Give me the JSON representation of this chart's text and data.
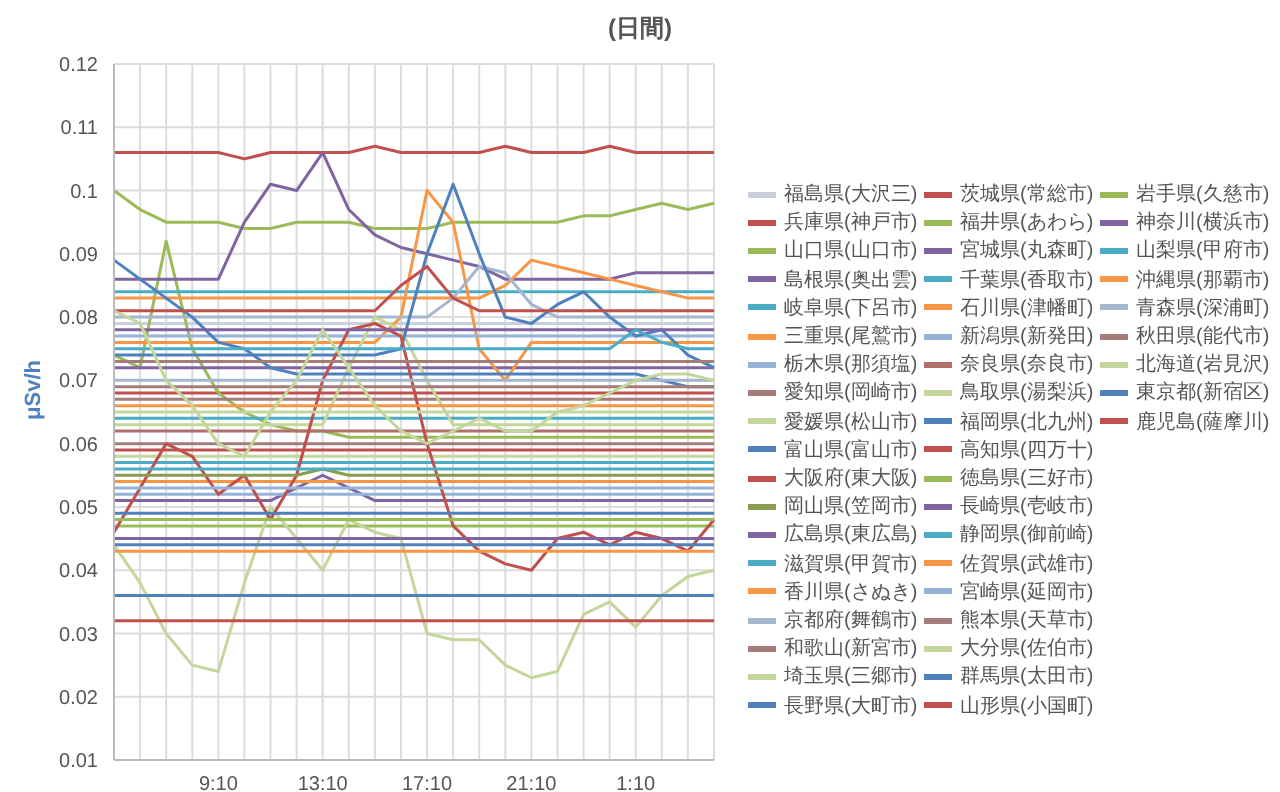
{
  "chart_data": {
    "type": "line",
    "title": "(日間)",
    "ylabel": "μSv/h",
    "categories": [
      null,
      null,
      null,
      null,
      "9:10",
      null,
      null,
      null,
      "13:10",
      null,
      null,
      null,
      "17:10",
      null,
      null,
      null,
      "21:10",
      null,
      null,
      null,
      "1:10",
      null,
      null,
      null
    ],
    "ylim": [
      0.01,
      0.12
    ],
    "yticks": [
      0.01,
      0.02,
      0.03,
      0.04,
      0.05,
      0.06,
      0.07,
      0.08,
      0.09,
      0.1,
      0.11,
      0.12
    ],
    "grid": true,
    "legend": "right",
    "marker": "none",
    "line_style": "solid",
    "series": [
      {
        "name": "福島県(大沢三)",
        "color": "#c9cfdc",
        "values": [
          0.079,
          0.079,
          0.079,
          0.079,
          0.079,
          0.079,
          0.079,
          0.079,
          0.079,
          0.079,
          0.079,
          0.079,
          0.079,
          0.079,
          0.079,
          0.079,
          0.079,
          0.079,
          0.079,
          0.079,
          0.079,
          0.079,
          0.079,
          0.079
        ]
      },
      {
        "name": "茨城県(常総市)",
        "color": "#c0504d",
        "values": [
          0.106,
          0.106,
          0.106,
          0.106,
          0.106,
          0.105,
          0.106,
          0.106,
          0.106,
          0.106,
          0.107,
          0.106,
          0.106,
          0.106,
          0.106,
          0.107,
          0.106,
          0.106,
          0.106,
          0.107,
          0.106,
          0.106,
          0.106,
          0.106
        ]
      },
      {
        "name": "岩手県(久慈市)",
        "color": "#9bbb59",
        "values": [
          0.1,
          0.097,
          0.095,
          0.095,
          0.095,
          0.094,
          0.094,
          0.095,
          0.095,
          0.095,
          0.094,
          0.094,
          0.094,
          0.095,
          0.095,
          0.095,
          0.095,
          0.095,
          0.096,
          0.096,
          0.097,
          0.098,
          0.097,
          0.098
        ]
      },
      {
        "name": "兵庫県(神戸市)",
        "color": "#c0504d",
        "values": [
          0.068,
          0.068,
          0.068,
          0.068,
          0.068,
          0.068,
          0.068,
          0.068,
          0.068,
          0.068,
          0.068,
          0.068,
          0.068,
          0.068,
          0.068,
          0.068,
          0.068,
          0.068,
          0.068,
          0.068,
          0.068,
          0.068,
          0.068,
          0.068
        ]
      },
      {
        "name": "福井県(あわら)",
        "color": "#9bbb59",
        "values": [
          0.074,
          0.072,
          0.092,
          0.075,
          0.068,
          0.065,
          0.063,
          0.062,
          0.062,
          0.061,
          0.061,
          0.061,
          0.061,
          0.061,
          0.061,
          0.061,
          0.061,
          0.061,
          0.061,
          0.061,
          0.061,
          0.061,
          0.061,
          0.061
        ]
      },
      {
        "name": "神奈川(横浜市)",
        "color": "#8064a2",
        "values": [
          0.086,
          0.086,
          0.086,
          0.086,
          0.086,
          0.095,
          0.101,
          0.1,
          0.106,
          0.097,
          0.093,
          0.091,
          0.09,
          0.089,
          0.088,
          0.086,
          0.086,
          0.086,
          0.086,
          0.086,
          0.087,
          0.087,
          0.087,
          0.087
        ]
      },
      {
        "name": "山口県(山口市)",
        "color": "#9bbb59",
        "values": [
          0.047,
          0.047,
          0.047,
          0.047,
          0.047,
          0.047,
          0.047,
          0.047,
          0.047,
          0.047,
          0.047,
          0.047,
          0.047,
          0.047,
          0.047,
          0.047,
          0.047,
          0.047,
          0.047,
          0.047,
          0.047,
          0.047,
          0.047,
          0.047
        ]
      },
      {
        "name": "宮城県(丸森町)",
        "color": "#8064a2",
        "values": [
          0.072,
          0.072,
          0.072,
          0.072,
          0.072,
          0.072,
          0.072,
          0.072,
          0.072,
          0.072,
          0.072,
          0.072,
          0.072,
          0.072,
          0.072,
          0.072,
          0.072,
          0.072,
          0.072,
          0.072,
          0.072,
          0.072,
          0.072,
          0.072
        ]
      },
      {
        "name": "山梨県(甲府市)",
        "color": "#4bacc6",
        "values": [
          0.084,
          0.084,
          0.084,
          0.084,
          0.084,
          0.084,
          0.084,
          0.084,
          0.084,
          0.084,
          0.084,
          0.084,
          0.084,
          0.084,
          0.084,
          0.084,
          0.084,
          0.084,
          0.084,
          0.084,
          0.084,
          0.084,
          0.084,
          0.084
        ]
      },
      {
        "name": "島根県(奥出雲)",
        "color": "#8064a2",
        "values": [
          0.051,
          0.051,
          0.051,
          0.051,
          0.051,
          0.051,
          0.051,
          0.053,
          0.055,
          0.053,
          0.051,
          0.051,
          0.051,
          0.051,
          0.051,
          0.051,
          0.051,
          0.051,
          0.051,
          0.051,
          0.051,
          0.051,
          0.051,
          0.051
        ]
      },
      {
        "name": "千葉県(香取市)",
        "color": "#4bacc6",
        "values": [
          0.064,
          0.064,
          0.064,
          0.064,
          0.064,
          0.064,
          0.064,
          0.064,
          0.064,
          0.064,
          0.064,
          0.064,
          0.064,
          0.064,
          0.064,
          0.064,
          0.064,
          0.064,
          0.064,
          0.064,
          0.064,
          0.064,
          0.064,
          0.064
        ]
      },
      {
        "name": "沖縄県(那覇市)",
        "color": "#f79646",
        "values": [
          0.083,
          0.083,
          0.083,
          0.083,
          0.083,
          0.083,
          0.083,
          0.083,
          0.083,
          0.083,
          0.083,
          0.083,
          0.083,
          0.083,
          0.083,
          0.085,
          0.089,
          0.088,
          0.087,
          0.086,
          0.085,
          0.084,
          0.083,
          0.083
        ]
      },
      {
        "name": "岐阜県(下呂市)",
        "color": "#4bacc6",
        "values": [
          0.057,
          0.057,
          0.057,
          0.057,
          0.057,
          0.057,
          0.057,
          0.057,
          0.057,
          0.057,
          0.057,
          0.057,
          0.057,
          0.057,
          0.057,
          0.057,
          0.057,
          0.057,
          0.057,
          0.057,
          0.057,
          0.057,
          0.057,
          0.057
        ]
      },
      {
        "name": "石川県(津幡町)",
        "color": "#f79646",
        "values": [
          0.076,
          0.076,
          0.076,
          0.076,
          0.076,
          0.076,
          0.076,
          0.076,
          0.076,
          0.076,
          0.076,
          0.08,
          0.1,
          0.095,
          0.075,
          0.07,
          0.076,
          0.076,
          0.076,
          0.076,
          0.076,
          0.076,
          0.076,
          0.076
        ]
      },
      {
        "name": "青森県(深浦町)",
        "color": "#a5b6cf",
        "values": [
          0.08,
          0.08,
          0.08,
          0.08,
          0.08,
          0.08,
          0.08,
          0.08,
          0.08,
          0.08,
          0.08,
          0.08,
          0.08,
          0.083,
          0.088,
          0.087,
          0.082,
          0.08,
          0.08,
          0.08,
          0.08,
          0.08,
          0.08,
          0.08
        ]
      },
      {
        "name": "三重県(尾鷲市)",
        "color": "#f79646",
        "values": [
          0.054,
          0.054,
          0.054,
          0.054,
          0.054,
          0.054,
          0.054,
          0.054,
          0.054,
          0.054,
          0.054,
          0.054,
          0.054,
          0.054,
          0.054,
          0.054,
          0.054,
          0.054,
          0.054,
          0.054,
          0.054,
          0.054,
          0.054,
          0.054
        ]
      },
      {
        "name": "新潟県(新発田)",
        "color": "#95b3d7",
        "values": [
          0.052,
          0.052,
          0.052,
          0.052,
          0.052,
          0.052,
          0.052,
          0.052,
          0.052,
          0.052,
          0.052,
          0.052,
          0.052,
          0.052,
          0.052,
          0.052,
          0.052,
          0.052,
          0.052,
          0.052,
          0.052,
          0.052,
          0.052,
          0.052
        ]
      },
      {
        "name": "秋田県(能代市)",
        "color": "#a47c7a",
        "values": [
          0.067,
          0.067,
          0.067,
          0.067,
          0.067,
          0.067,
          0.067,
          0.067,
          0.067,
          0.067,
          0.067,
          0.067,
          0.067,
          0.067,
          0.067,
          0.067,
          0.067,
          0.067,
          0.067,
          0.067,
          0.067,
          0.067,
          0.067,
          0.067
        ]
      },
      {
        "name": "栃木県(那須塩)",
        "color": "#95b3d7",
        "values": [
          0.077,
          0.077,
          0.077,
          0.077,
          0.077,
          0.077,
          0.077,
          0.077,
          0.077,
          0.077,
          0.077,
          0.077,
          0.077,
          0.077,
          0.077,
          0.077,
          0.077,
          0.077,
          0.077,
          0.077,
          0.077,
          0.077,
          0.077,
          0.077
        ]
      },
      {
        "name": "奈良県(奈良市)",
        "color": "#b0706c",
        "values": [
          0.062,
          0.062,
          0.062,
          0.062,
          0.062,
          0.062,
          0.062,
          0.062,
          0.062,
          0.062,
          0.062,
          0.062,
          0.062,
          0.062,
          0.062,
          0.062,
          0.062,
          0.062,
          0.062,
          0.062,
          0.062,
          0.062,
          0.062,
          0.062
        ]
      },
      {
        "name": "北海道(岩見沢)",
        "color": "#c3d69b",
        "values": [
          0.044,
          0.038,
          0.03,
          0.025,
          0.024,
          0.038,
          0.05,
          0.045,
          0.04,
          0.048,
          0.046,
          0.045,
          0.03,
          0.029,
          0.029,
          0.025,
          0.023,
          0.024,
          0.033,
          0.035,
          0.031,
          0.036,
          0.039,
          0.04
        ]
      },
      {
        "name": "愛知県(岡崎市)",
        "color": "#a47c7a",
        "values": [
          0.06,
          0.06,
          0.06,
          0.06,
          0.06,
          0.06,
          0.06,
          0.06,
          0.06,
          0.06,
          0.06,
          0.06,
          0.06,
          0.06,
          0.06,
          0.06,
          0.06,
          0.06,
          0.06,
          0.06,
          0.06,
          0.06,
          0.06,
          0.06
        ]
      },
      {
        "name": "鳥取県(湯梨浜)",
        "color": "#c3d69b",
        "values": [
          0.063,
          0.063,
          0.063,
          0.063,
          0.063,
          0.063,
          0.063,
          0.063,
          0.063,
          0.072,
          0.08,
          0.078,
          0.07,
          0.063,
          0.063,
          0.063,
          0.063,
          0.063,
          0.063,
          0.063,
          0.063,
          0.063,
          0.063,
          0.063
        ]
      },
      {
        "name": "東京都(新宿区)",
        "color": "#4f81bd",
        "values": [
          0.074,
          0.074,
          0.074,
          0.074,
          0.074,
          0.074,
          0.074,
          0.074,
          0.074,
          0.074,
          0.074,
          0.075,
          0.09,
          0.101,
          0.09,
          0.08,
          0.079,
          0.082,
          0.084,
          0.08,
          0.077,
          0.078,
          0.074,
          0.072
        ]
      },
      {
        "name": "愛媛県(松山市)",
        "color": "#c3d69b",
        "values": [
          0.058,
          0.058,
          0.058,
          0.058,
          0.058,
          0.058,
          0.058,
          0.058,
          0.058,
          0.058,
          0.058,
          0.058,
          0.058,
          0.058,
          0.058,
          0.058,
          0.058,
          0.058,
          0.058,
          0.058,
          0.058,
          0.058,
          0.058,
          0.058
        ]
      },
      {
        "name": "福岡県(北九州)",
        "color": "#4f81bd",
        "values": [
          0.089,
          0.086,
          0.083,
          0.08,
          0.076,
          0.075,
          0.072,
          0.071,
          0.071,
          0.071,
          0.071,
          0.071,
          0.071,
          0.071,
          0.071,
          0.071,
          0.071,
          0.071,
          0.071,
          0.071,
          0.071,
          0.07,
          0.069,
          0.069
        ]
      },
      {
        "name": "鹿児島(薩摩川)",
        "color": "#c0504d",
        "values": [
          0.046,
          0.053,
          0.06,
          0.058,
          0.052,
          0.055,
          0.048,
          0.055,
          0.07,
          0.078,
          0.079,
          0.077,
          0.06,
          0.047,
          0.043,
          0.041,
          0.04,
          0.045,
          0.046,
          0.044,
          0.046,
          0.045,
          0.043,
          0.048
        ]
      },
      {
        "name": "富山県(富山市)",
        "color": "#4f81bd",
        "values": [
          0.049,
          0.049,
          0.049,
          0.049,
          0.049,
          0.049,
          0.049,
          0.049,
          0.049,
          0.049,
          0.049,
          0.049,
          0.049,
          0.049,
          0.049,
          0.049,
          0.049,
          0.049,
          0.049,
          0.049,
          0.049,
          0.049,
          0.049,
          0.049
        ]
      },
      {
        "name": "高知県(四万十)",
        "color": "#c0504d",
        "values": [
          0.059,
          0.059,
          0.059,
          0.059,
          0.059,
          0.059,
          0.059,
          0.059,
          0.059,
          0.059,
          0.059,
          0.059,
          0.059,
          0.059,
          0.059,
          0.059,
          0.059,
          0.059,
          0.059,
          0.059,
          0.059,
          0.059,
          0.059,
          0.059
        ]
      },
      {
        "name": "大阪府(東大阪)",
        "color": "#c0504d",
        "values": [
          0.081,
          0.081,
          0.081,
          0.081,
          0.081,
          0.081,
          0.081,
          0.081,
          0.081,
          0.081,
          0.081,
          0.085,
          0.088,
          0.083,
          0.081,
          0.081,
          0.081,
          0.081,
          0.081,
          0.081,
          0.081,
          0.081,
          0.081,
          0.081
        ]
      },
      {
        "name": "徳島県(三好市)",
        "color": "#9bbb59",
        "values": [
          0.048,
          0.048,
          0.048,
          0.048,
          0.048,
          0.048,
          0.048,
          0.048,
          0.048,
          0.048,
          0.048,
          0.048,
          0.048,
          0.048,
          0.048,
          0.048,
          0.048,
          0.048,
          0.048,
          0.048,
          0.048,
          0.048,
          0.048,
          0.048
        ]
      },
      {
        "name": "岡山県(笠岡市)",
        "color": "#8a9a50",
        "values": [
          0.055,
          0.055,
          0.055,
          0.055,
          0.055,
          0.055,
          0.055,
          0.055,
          0.056,
          0.055,
          0.055,
          0.055,
          0.055,
          0.055,
          0.055,
          0.055,
          0.055,
          0.055,
          0.055,
          0.055,
          0.055,
          0.055,
          0.055,
          0.055
        ]
      },
      {
        "name": "長崎県(壱岐市)",
        "color": "#8064a2",
        "values": [
          0.045,
          0.045,
          0.045,
          0.045,
          0.045,
          0.045,
          0.045,
          0.045,
          0.045,
          0.045,
          0.045,
          0.045,
          0.045,
          0.045,
          0.045,
          0.045,
          0.045,
          0.045,
          0.045,
          0.045,
          0.045,
          0.045,
          0.045,
          0.045
        ]
      },
      {
        "name": "広島県(東広島)",
        "color": "#8064a2",
        "values": [
          0.078,
          0.078,
          0.078,
          0.078,
          0.078,
          0.078,
          0.078,
          0.078,
          0.078,
          0.078,
          0.078,
          0.078,
          0.078,
          0.078,
          0.078,
          0.078,
          0.078,
          0.078,
          0.078,
          0.078,
          0.078,
          0.078,
          0.078,
          0.078
        ]
      },
      {
        "name": "静岡県(御前崎)",
        "color": "#4bacc6",
        "values": [
          0.056,
          0.056,
          0.056,
          0.056,
          0.056,
          0.056,
          0.056,
          0.056,
          0.056,
          0.056,
          0.056,
          0.056,
          0.056,
          0.056,
          0.056,
          0.056,
          0.056,
          0.056,
          0.056,
          0.056,
          0.056,
          0.056,
          0.056,
          0.056
        ]
      },
      {
        "name": "滋賀県(甲賀市)",
        "color": "#4bacc6",
        "values": [
          0.075,
          0.075,
          0.075,
          0.075,
          0.075,
          0.075,
          0.075,
          0.075,
          0.075,
          0.075,
          0.075,
          0.075,
          0.075,
          0.075,
          0.075,
          0.075,
          0.075,
          0.075,
          0.075,
          0.075,
          0.078,
          0.076,
          0.075,
          0.075
        ]
      },
      {
        "name": "佐賀県(武雄市)",
        "color": "#f79646",
        "values": [
          0.043,
          0.043,
          0.043,
          0.043,
          0.043,
          0.043,
          0.043,
          0.043,
          0.043,
          0.043,
          0.043,
          0.043,
          0.043,
          0.043,
          0.043,
          0.043,
          0.043,
          0.043,
          0.043,
          0.043,
          0.043,
          0.043,
          0.043,
          0.043
        ]
      },
      {
        "name": "香川県(さぬき)",
        "color": "#f79646",
        "values": [
          0.066,
          0.066,
          0.066,
          0.066,
          0.066,
          0.066,
          0.066,
          0.066,
          0.066,
          0.066,
          0.066,
          0.066,
          0.066,
          0.066,
          0.066,
          0.066,
          0.066,
          0.066,
          0.066,
          0.066,
          0.066,
          0.066,
          0.066,
          0.066
        ]
      },
      {
        "name": "宮崎県(延岡市)",
        "color": "#95b3d7",
        "values": [
          0.053,
          0.053,
          0.053,
          0.053,
          0.053,
          0.053,
          0.053,
          0.053,
          0.053,
          0.053,
          0.053,
          0.053,
          0.053,
          0.053,
          0.053,
          0.053,
          0.053,
          0.053,
          0.053,
          0.053,
          0.053,
          0.053,
          0.053,
          0.053
        ]
      },
      {
        "name": "京都府(舞鶴市)",
        "color": "#a5b6cf",
        "values": [
          0.07,
          0.07,
          0.07,
          0.07,
          0.07,
          0.07,
          0.07,
          0.07,
          0.07,
          0.07,
          0.07,
          0.07,
          0.07,
          0.07,
          0.07,
          0.07,
          0.07,
          0.07,
          0.07,
          0.07,
          0.07,
          0.07,
          0.07,
          0.07
        ]
      },
      {
        "name": "熊本県(天草市)",
        "color": "#a47c7a",
        "values": [
          0.069,
          0.069,
          0.069,
          0.069,
          0.069,
          0.069,
          0.069,
          0.069,
          0.069,
          0.069,
          0.069,
          0.069,
          0.069,
          0.069,
          0.069,
          0.069,
          0.069,
          0.069,
          0.069,
          0.069,
          0.069,
          0.069,
          0.069,
          0.069
        ]
      },
      {
        "name": "和歌山(新宮市)",
        "color": "#a47c7a",
        "values": [
          0.073,
          0.073,
          0.073,
          0.073,
          0.073,
          0.073,
          0.073,
          0.073,
          0.073,
          0.073,
          0.073,
          0.073,
          0.073,
          0.073,
          0.073,
          0.073,
          0.073,
          0.073,
          0.073,
          0.073,
          0.073,
          0.073,
          0.073,
          0.073
        ]
      },
      {
        "name": "大分県(佐伯市)",
        "color": "#c3d69b",
        "values": [
          0.081,
          0.079,
          0.07,
          0.066,
          0.06,
          0.058,
          0.065,
          0.07,
          0.078,
          0.072,
          0.066,
          0.062,
          0.06,
          0.062,
          0.064,
          0.062,
          0.062,
          0.065,
          0.066,
          0.068,
          0.07,
          0.071,
          0.071,
          0.07
        ]
      },
      {
        "name": "埼玉県(三郷市)",
        "color": "#c3d69b",
        "values": [
          0.065,
          0.065,
          0.065,
          0.065,
          0.065,
          0.065,
          0.065,
          0.065,
          0.065,
          0.065,
          0.065,
          0.065,
          0.065,
          0.065,
          0.065,
          0.065,
          0.065,
          0.065,
          0.065,
          0.065,
          0.065,
          0.065,
          0.065,
          0.065
        ]
      },
      {
        "name": "群馬県(太田市)",
        "color": "#4f81bd",
        "values": [
          0.036,
          0.036,
          0.036,
          0.036,
          0.036,
          0.036,
          0.036,
          0.036,
          0.036,
          0.036,
          0.036,
          0.036,
          0.036,
          0.036,
          0.036,
          0.036,
          0.036,
          0.036,
          0.036,
          0.036,
          0.036,
          0.036,
          0.036,
          0.036
        ]
      },
      {
        "name": "長野県(大町市)",
        "color": "#4f81bd",
        "values": [
          0.044,
          0.044,
          0.044,
          0.044,
          0.044,
          0.044,
          0.044,
          0.044,
          0.044,
          0.044,
          0.044,
          0.044,
          0.044,
          0.044,
          0.044,
          0.044,
          0.044,
          0.044,
          0.044,
          0.044,
          0.044,
          0.044,
          0.044,
          0.044
        ]
      },
      {
        "name": "山形県(小国町)",
        "color": "#c0504d",
        "values": [
          0.032,
          0.032,
          0.032,
          0.032,
          0.032,
          0.032,
          0.032,
          0.032,
          0.032,
          0.032,
          0.032,
          0.032,
          0.032,
          0.032,
          0.032,
          0.032,
          0.032,
          0.032,
          0.032,
          0.032,
          0.032,
          0.032,
          0.032,
          0.032
        ]
      }
    ]
  }
}
